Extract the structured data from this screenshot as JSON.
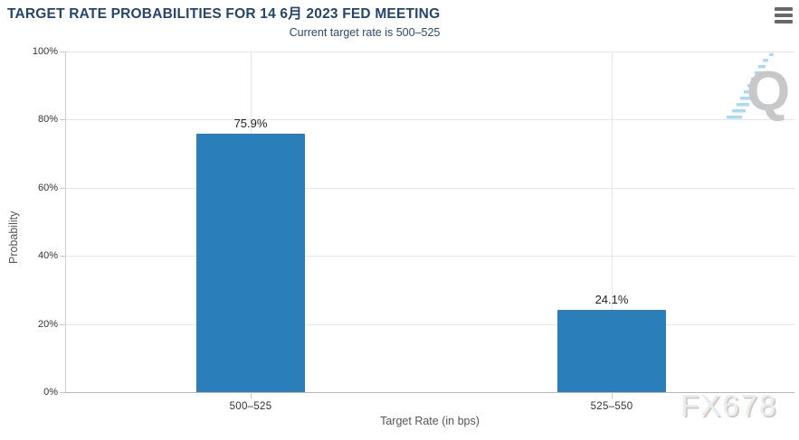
{
  "chart_data": {
    "type": "bar",
    "title": "TARGET RATE PROBABILITIES FOR 14 6月 2023 FED MEETING",
    "subtitle": "Current target rate is 500–525",
    "categories": [
      "500–525",
      "525–550"
    ],
    "values": [
      75.9,
      24.1
    ],
    "value_labels": [
      "75.9%",
      "24.1%"
    ],
    "xlabel": "Target Rate (in bps)",
    "ylabel": "Probability",
    "ylim": [
      0,
      100
    ],
    "ytick_labels": [
      "0%",
      "20%",
      "40%",
      "60%",
      "80%",
      "100%"
    ],
    "grid": true,
    "legend": "none",
    "bar_color": "#2a7eb9"
  },
  "watermarks": {
    "brand": "FX678",
    "logo_letter": "Q"
  },
  "controls": {
    "menu_icon": "hamburger"
  }
}
